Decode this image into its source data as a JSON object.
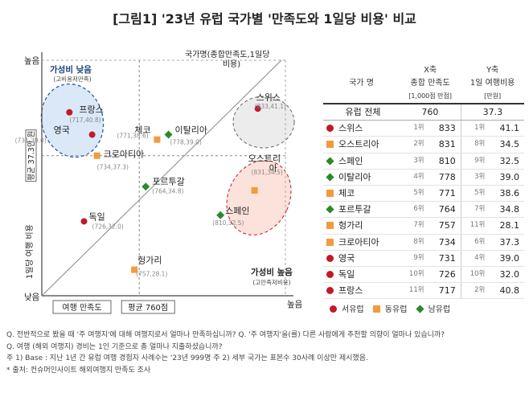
{
  "title": "[그림1] '23년 유럽 국가별 '만족도와 1일당 비용' 비교",
  "chart_data": {
    "type": "scatter",
    "xlabel": "여행 만족도",
    "ylabel": "1일당 여행 비용",
    "y_avg_label": "평균 37.3만 원",
    "x_avg_label": "평균 760점",
    "xlim": [
      700,
      850
    ],
    "ylim": [
      26,
      45
    ],
    "x_avg": 760,
    "y_avg": 37.3,
    "corner_labels": {
      "low_both": "낮음",
      "high_y": "높음",
      "high_x": "높음"
    },
    "diagonal_label": "국가명(종합만족도,1일당 비용)",
    "ellipse_low_value": {
      "title": "가성비 낮음",
      "sub": "(고비용저만족)"
    },
    "ellipse_high_value": {
      "title": "가성비 높음",
      "sub": "(고만족저비용)"
    },
    "points": [
      {
        "name": "스위스",
        "x": 833,
        "y": 41.1,
        "label": "(833,41.1)",
        "region": "서유럽"
      },
      {
        "name": "오스트리아",
        "x": 831,
        "y": 34.5,
        "label": "(831,34.5)",
        "region": "동유럽"
      },
      {
        "name": "스페인",
        "x": 810,
        "y": 32.5,
        "label": "(810,32.5)",
        "region": "남유럽"
      },
      {
        "name": "이탈리아",
        "x": 778,
        "y": 39.0,
        "label": "(778,39.0)",
        "region": "남유럽"
      },
      {
        "name": "체코",
        "x": 771,
        "y": 38.6,
        "label": "(771,38.6)",
        "region": "동유럽"
      },
      {
        "name": "포르투갈",
        "x": 764,
        "y": 34.8,
        "label": "(764,34.8)",
        "region": "남유럽"
      },
      {
        "name": "헝가리",
        "x": 757,
        "y": 28.1,
        "label": "(757,28.1)",
        "region": "동유럽"
      },
      {
        "name": "크로아티아",
        "x": 734,
        "y": 37.3,
        "label": "(734,37.3)",
        "region": "동유럽"
      },
      {
        "name": "영국",
        "x": 731,
        "y": 39.0,
        "label": "(731,39.0)",
        "region": "서유럽"
      },
      {
        "name": "독일",
        "x": 726,
        "y": 32.0,
        "label": "(726,32.0)",
        "region": "서유럽"
      },
      {
        "name": "프랑스",
        "x": 717,
        "y": 40.8,
        "label": "(717,40.8)",
        "region": "서유럽"
      }
    ],
    "legend": [
      {
        "name": "서유럽",
        "shape": "circle",
        "color": "#c0192a"
      },
      {
        "name": "동유럽",
        "shape": "square",
        "color": "#f29b3e"
      },
      {
        "name": "남유럽",
        "shape": "diamond",
        "color": "#2a8a2a"
      }
    ],
    "table": {
      "headers": {
        "country": "국가 명",
        "x_top": "X축",
        "x_mid": "종합 만족도",
        "x_unit": "[1,000점 만점]",
        "y_top": "Y축",
        "y_mid": "1일 여행비용",
        "y_unit": "[만원]"
      },
      "total": {
        "name": "유럽 전체",
        "x": "760",
        "y": "37.3"
      },
      "rows": [
        {
          "name": "스위스",
          "shape": "circle",
          "xrank": "1위",
          "x": "833",
          "yrank": "1위",
          "y": "41.1"
        },
        {
          "name": "오스트리아",
          "shape": "square",
          "xrank": "2위",
          "x": "831",
          "yrank": "8위",
          "y": "34.5"
        },
        {
          "name": "스페인",
          "shape": "diamond",
          "xrank": "3위",
          "x": "810",
          "yrank": "9위",
          "y": "32.5"
        },
        {
          "name": "이탈리아",
          "shape": "diamond",
          "xrank": "4위",
          "x": "778",
          "yrank": "3위",
          "y": "39.0"
        },
        {
          "name": "체코",
          "shape": "square",
          "xrank": "5위",
          "x": "771",
          "yrank": "5위",
          "y": "38.6"
        },
        {
          "name": "포르투갈",
          "shape": "diamond",
          "xrank": "6위",
          "x": "764",
          "yrank": "7위",
          "y": "34.8"
        },
        {
          "name": "헝가리",
          "shape": "square",
          "xrank": "7위",
          "x": "757",
          "yrank": "11위",
          "y": "28.1"
        },
        {
          "name": "크로아티아",
          "shape": "square",
          "xrank": "8위",
          "x": "734",
          "yrank": "6위",
          "y": "37.3"
        },
        {
          "name": "영국",
          "shape": "circle",
          "xrank": "9위",
          "x": "731",
          "yrank": "4위",
          "y": "39.0"
        },
        {
          "name": "독일",
          "shape": "circle",
          "xrank": "10위",
          "x": "726",
          "yrank": "10위",
          "y": "32.0"
        },
        {
          "name": "프랑스",
          "shape": "circle",
          "xrank": "11위",
          "x": "717",
          "yrank": "2위",
          "y": "40.8"
        }
      ]
    }
  },
  "notes": [
    "Q. 전반적으로 봤을 때 '주 여행지'에 대해 여행지로서 얼마나 만족하십니까? Q. '주 여행지'을(를) 다른 사람에게 추천할 의향이 얼마나 있습니까?",
    "Q. 여행 (해외 여행지) 경비는 1인 기준으로 총 얼마나 지출하셨습니까?",
    "주 1) Base : 지난 1년 간 유럽 여행 경험자 사례수는 '23년 999명 주 2) 세부 국가는 표본수 30사례 이상만 제시했음.",
    "* 출처: 컨슈머인사이트 해외여행지 만족도 조사"
  ]
}
